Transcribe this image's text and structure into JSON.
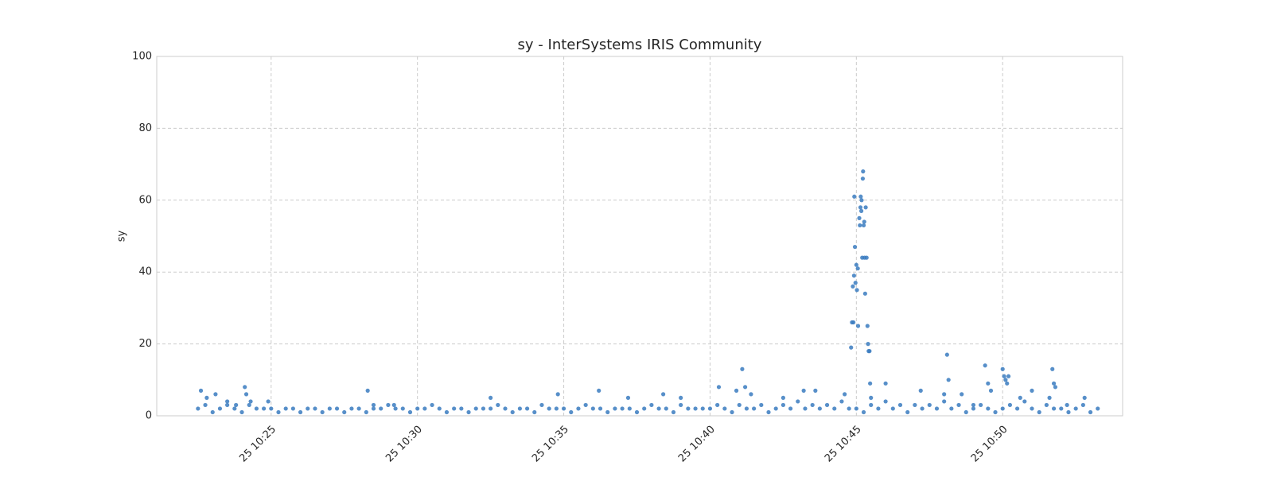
{
  "chart_data": {
    "type": "scatter",
    "title": "sy - InterSystems IRIS Community",
    "ylabel": "sy",
    "color": "#3a7bbf",
    "grid": true,
    "xlim": [
      621.09,
      654.1
    ],
    "ylim": [
      0,
      100
    ],
    "xticks": [
      {
        "value": 625,
        "label": "25 10:25"
      },
      {
        "value": 630,
        "label": "25 10:30"
      },
      {
        "value": 635,
        "label": "25 10:35"
      },
      {
        "value": 640,
        "label": "25 10:40"
      },
      {
        "value": 645,
        "label": "25 10:45"
      },
      {
        "value": 650,
        "label": "25 10:50"
      }
    ],
    "yticks": [
      0,
      20,
      40,
      60,
      80,
      100
    ],
    "x": [
      622.5,
      622.75,
      623,
      623.25,
      623.5,
      623.75,
      624,
      624.25,
      624.5,
      624.75,
      625,
      625.25,
      625.5,
      625.75,
      626,
      626.25,
      626.5,
      626.75,
      627,
      627.25,
      627.5,
      627.75,
      628,
      628.25,
      628.5,
      628.75,
      629,
      629.25,
      629.5,
      629.75,
      630,
      630.25,
      630.5,
      630.75,
      631,
      631.25,
      631.5,
      631.75,
      632,
      632.25,
      632.5,
      632.75,
      633,
      633.25,
      633.5,
      633.75,
      634,
      634.25,
      634.5,
      634.75,
      635,
      635.25,
      635.5,
      635.75,
      636,
      636.25,
      636.5,
      636.75,
      637,
      637.25,
      637.5,
      637.75,
      638,
      638.25,
      638.5,
      638.75,
      639,
      639.25,
      639.5,
      639.75,
      640,
      640.25,
      640.5,
      640.75,
      641,
      641.25,
      641.5,
      641.75,
      642,
      642.25,
      642.5,
      642.75,
      643,
      643.25,
      643.5,
      643.75,
      644,
      644.25,
      644.5,
      644.75,
      645,
      645.25,
      645.5,
      645.75,
      646,
      646.25,
      646.5,
      646.75,
      647,
      647.25,
      647.5,
      647.75,
      648,
      648.25,
      648.5,
      648.75,
      649,
      649.25,
      649.5,
      649.75,
      650,
      650.25,
      650.5,
      650.75,
      651,
      651.25,
      651.5,
      651.75,
      652,
      652.25,
      652.5,
      652.75,
      653,
      653.25,
      622.6,
      622.8,
      623.1,
      623.5,
      623.8,
      624.1,
      624.15,
      624.3,
      624.9,
      628.3,
      628.5,
      629.2,
      632.5,
      634.8,
      636.2,
      637.2,
      638.4,
      639,
      640.3,
      640.9,
      641.1,
      641.2,
      641.4,
      642.5,
      643.2,
      643.6,
      644.6,
      644.82,
      644.85,
      644.88,
      644.9,
      644.92,
      644.93,
      644.95,
      644.97,
      645,
      645.02,
      645.05,
      645.06,
      645.1,
      645.12,
      645.14,
      645.15,
      645.17,
      645.18,
      645.2,
      645.22,
      645.23,
      645.25,
      645.27,
      645.28,
      645.3,
      645.32,
      645.35,
      645.38,
      645.4,
      645.42,
      645.45,
      645.47,
      645.5,
      646,
      647.2,
      648,
      648.1,
      648.15,
      648.6,
      649,
      649.4,
      649.5,
      649.6,
      650,
      650.05,
      650.1,
      650.15,
      650.2,
      650.6,
      651,
      651.6,
      651.7,
      651.75,
      651.8,
      652.2,
      652.8
    ],
    "values": [
      2,
      3,
      1,
      2,
      3,
      2,
      1,
      3,
      2,
      2,
      2,
      1,
      2,
      2,
      1,
      2,
      2,
      1,
      2,
      2,
      1,
      2,
      2,
      1,
      2,
      2,
      3,
      2,
      2,
      1,
      2,
      2,
      3,
      2,
      1,
      2,
      2,
      1,
      2,
      2,
      2,
      3,
      2,
      1,
      2,
      2,
      1,
      3,
      2,
      2,
      2,
      1,
      2,
      3,
      2,
      2,
      1,
      2,
      2,
      2,
      1,
      2,
      3,
      2,
      2,
      1,
      3,
      2,
      2,
      2,
      2,
      3,
      2,
      1,
      3,
      2,
      2,
      3,
      1,
      2,
      3,
      2,
      4,
      2,
      3,
      2,
      3,
      2,
      4,
      2,
      2,
      1,
      3,
      2,
      4,
      2,
      3,
      1,
      3,
      2,
      3,
      2,
      4,
      2,
      3,
      1,
      2,
      3,
      2,
      1,
      2,
      3,
      2,
      4,
      2,
      1,
      3,
      2,
      2,
      1,
      2,
      3,
      1,
      2,
      7,
      5,
      6,
      4,
      3,
      8,
      6,
      4,
      4,
      7,
      3,
      3,
      5,
      6,
      7,
      5,
      6,
      5,
      8,
      7,
      13,
      8,
      6,
      5,
      7,
      7,
      6,
      19,
      26,
      36,
      26,
      39,
      61,
      47,
      37,
      42,
      35,
      41,
      25,
      55,
      53,
      58,
      61,
      57,
      60,
      44,
      66,
      68,
      53,
      54,
      44,
      34,
      58,
      44,
      25,
      20,
      18,
      18,
      9,
      5,
      9,
      7,
      6,
      17,
      10,
      6,
      3,
      14,
      9,
      7,
      13,
      11,
      10,
      9,
      11,
      5,
      7,
      5,
      13,
      9,
      8,
      3,
      5
    ]
  }
}
